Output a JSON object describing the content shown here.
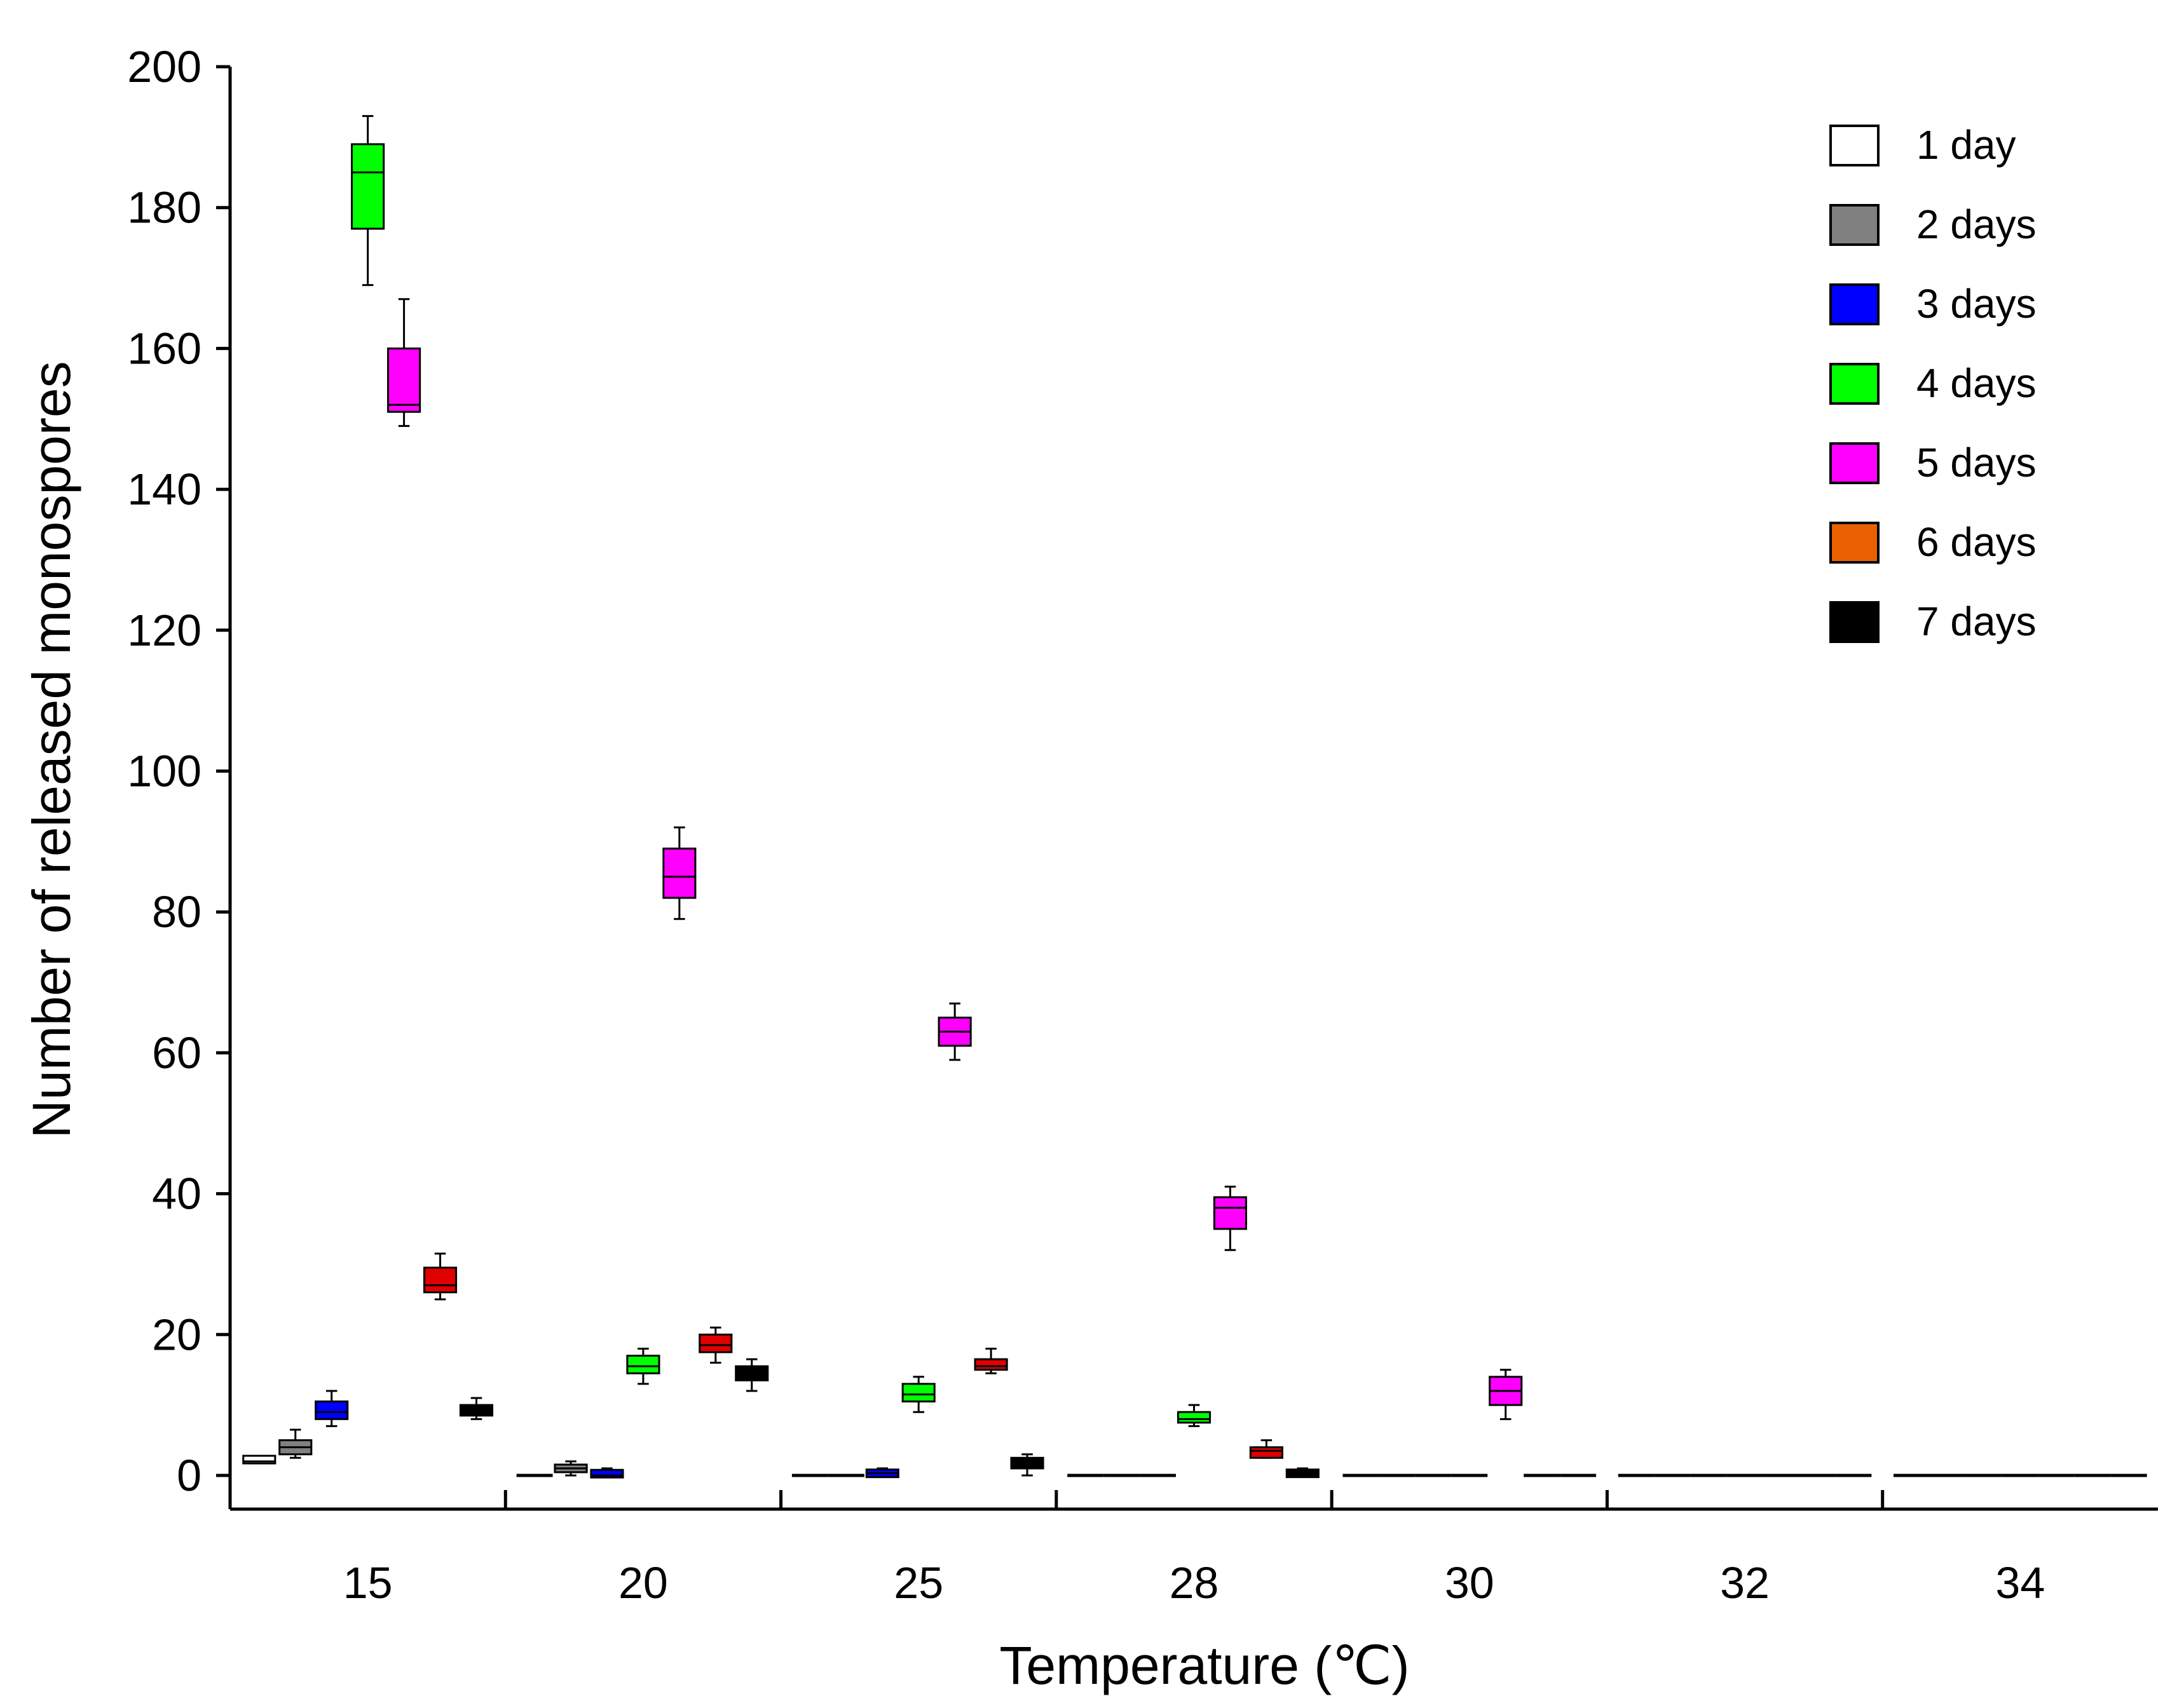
{
  "chart_data": {
    "type": "box",
    "title": "",
    "xlabel": "Temperature (℃)",
    "ylabel": "Number of released monospores",
    "ylim": [
      0,
      200
    ],
    "yticks": [
      "0",
      "20",
      "40",
      "60",
      "80",
      "100",
      "120",
      "140",
      "160",
      "180",
      "200"
    ],
    "categories": [
      "15",
      "20",
      "25",
      "28",
      "30",
      "32",
      "34"
    ],
    "legend": {
      "position": "top-right",
      "entries": [
        {
          "label": "1 day",
          "color": "#ffffff"
        },
        {
          "label": "2 days",
          "color": "#808080"
        },
        {
          "label": "3 days",
          "color": "#0000ff"
        },
        {
          "label": "4 days",
          "color": "#00ff00"
        },
        {
          "label": "5 days",
          "color": "#ff00ff"
        },
        {
          "label": "6 days",
          "color": "#e86000"
        },
        {
          "label": "7 days",
          "color": "#000000"
        }
      ]
    },
    "series": [
      {
        "name": "1 day",
        "color": "#ffffff",
        "boxes": [
          {
            "min": 2,
            "q1": 2,
            "median": 2,
            "q3": 2.5,
            "max": 2.5
          },
          {
            "min": 0,
            "q1": 0,
            "median": 0,
            "q3": 0,
            "max": 0
          },
          {
            "min": 0,
            "q1": 0,
            "median": 0,
            "q3": 0,
            "max": 0
          },
          {
            "min": 0,
            "q1": 0,
            "median": 0,
            "q3": 0,
            "max": 0
          },
          {
            "min": 0,
            "q1": 0,
            "median": 0,
            "q3": 0,
            "max": 0
          },
          {
            "min": 0,
            "q1": 0,
            "median": 0,
            "q3": 0,
            "max": 0
          },
          {
            "min": 0,
            "q1": 0,
            "median": 0,
            "q3": 0,
            "max": 0
          }
        ]
      },
      {
        "name": "2 days",
        "color": "#808080",
        "boxes": [
          {
            "min": 2.5,
            "q1": 3,
            "median": 4,
            "q3": 5,
            "max": 6.5
          },
          {
            "min": 0,
            "q1": 0.5,
            "median": 1,
            "q3": 1.5,
            "max": 2
          },
          {
            "min": 0,
            "q1": 0,
            "median": 0,
            "q3": 0,
            "max": 0
          },
          {
            "min": 0,
            "q1": 0,
            "median": 0,
            "q3": 0,
            "max": 0
          },
          {
            "min": 0,
            "q1": 0,
            "median": 0,
            "q3": 0,
            "max": 0
          },
          {
            "min": 0,
            "q1": 0,
            "median": 0,
            "q3": 0,
            "max": 0
          },
          {
            "min": 0,
            "q1": 0,
            "median": 0,
            "q3": 0,
            "max": 0
          }
        ]
      },
      {
        "name": "3 days",
        "color": "#0000ff",
        "boxes": [
          {
            "min": 7,
            "q1": 8,
            "median": 9,
            "q3": 10.5,
            "max": 12
          },
          {
            "min": 0,
            "q1": 0,
            "median": 0,
            "q3": 0.5,
            "max": 1
          },
          {
            "min": 0,
            "q1": 0,
            "median": 0.3,
            "q3": 0.6,
            "max": 1
          },
          {
            "min": 0,
            "q1": 0,
            "median": 0,
            "q3": 0,
            "max": 0
          },
          {
            "min": 0,
            "q1": 0,
            "median": 0,
            "q3": 0,
            "max": 0
          },
          {
            "min": 0,
            "q1": 0,
            "median": 0,
            "q3": 0,
            "max": 0
          },
          {
            "min": 0,
            "q1": 0,
            "median": 0,
            "q3": 0,
            "max": 0
          }
        ]
      },
      {
        "name": "4 days",
        "color": "#00ff00",
        "boxes": [
          {
            "min": 169,
            "q1": 177,
            "median": 185,
            "q3": 189,
            "max": 193
          },
          {
            "min": 13,
            "q1": 14.5,
            "median": 15.5,
            "q3": 17,
            "max": 18
          },
          {
            "min": 9,
            "q1": 10.5,
            "median": 11.5,
            "q3": 13,
            "max": 14
          },
          {
            "min": 7,
            "q1": 7.5,
            "median": 8,
            "q3": 9,
            "max": 10
          },
          {
            "min": 0,
            "q1": 0,
            "median": 0,
            "q3": 0,
            "max": 0
          },
          {
            "min": 0,
            "q1": 0,
            "median": 0,
            "q3": 0,
            "max": 0
          },
          {
            "min": 0,
            "q1": 0,
            "median": 0,
            "q3": 0,
            "max": 0
          }
        ]
      },
      {
        "name": "5 days",
        "color": "#ff00ff",
        "boxes": [
          {
            "min": 149,
            "q1": 151,
            "median": 152,
            "q3": 160,
            "max": 167
          },
          {
            "min": 79,
            "q1": 82,
            "median": 85,
            "q3": 89,
            "max": 92
          },
          {
            "min": 59,
            "q1": 61,
            "median": 63,
            "q3": 65,
            "max": 67
          },
          {
            "min": 32,
            "q1": 35,
            "median": 38,
            "q3": 39.5,
            "max": 41
          },
          {
            "min": 8,
            "q1": 10,
            "median": 12,
            "q3": 14,
            "max": 15
          },
          {
            "min": 0,
            "q1": 0,
            "median": 0,
            "q3": 0,
            "max": 0
          },
          {
            "min": 0,
            "q1": 0,
            "median": 0,
            "q3": 0,
            "max": 0
          }
        ]
      },
      {
        "name": "6 days",
        "color": "#e86000",
        "boxes": [
          {
            "min": 25,
            "q1": 26,
            "median": 27,
            "q3": 29.5,
            "max": 31.5
          },
          {
            "min": 16,
            "q1": 17.5,
            "median": 18.5,
            "q3": 20,
            "max": 21
          },
          {
            "min": 14.5,
            "q1": 15,
            "median": 15.5,
            "q3": 16.5,
            "max": 18
          },
          {
            "min": 2.5,
            "q1": 2.5,
            "median": 3.5,
            "q3": 4,
            "max": 5
          },
          {
            "min": 0,
            "q1": 0,
            "median": 0,
            "q3": 0,
            "max": 0
          },
          {
            "min": 0,
            "q1": 0,
            "median": 0,
            "q3": 0,
            "max": 0
          },
          {
            "min": 0,
            "q1": 0,
            "median": 0,
            "q3": 0,
            "max": 0
          }
        ]
      },
      {
        "name": "7 days",
        "color": "#000000",
        "boxes": [
          {
            "min": 8,
            "q1": 8.5,
            "median": 9.5,
            "q3": 10,
            "max": 11
          },
          {
            "min": 12,
            "q1": 13.5,
            "median": 14.5,
            "q3": 15.5,
            "max": 16.5
          },
          {
            "min": 0,
            "q1": 1,
            "median": 2,
            "q3": 2.5,
            "max": 3
          },
          {
            "min": 0,
            "q1": 0,
            "median": 0.3,
            "q3": 0.6,
            "max": 1
          },
          {
            "min": 0,
            "q1": 0,
            "median": 0,
            "q3": 0,
            "max": 0
          },
          {
            "min": 0,
            "q1": 0,
            "median": 0,
            "q3": 0,
            "max": 0
          },
          {
            "min": 0,
            "q1": 0,
            "median": 0,
            "q3": 0,
            "max": 0
          }
        ]
      }
    ],
    "grid": false
  }
}
